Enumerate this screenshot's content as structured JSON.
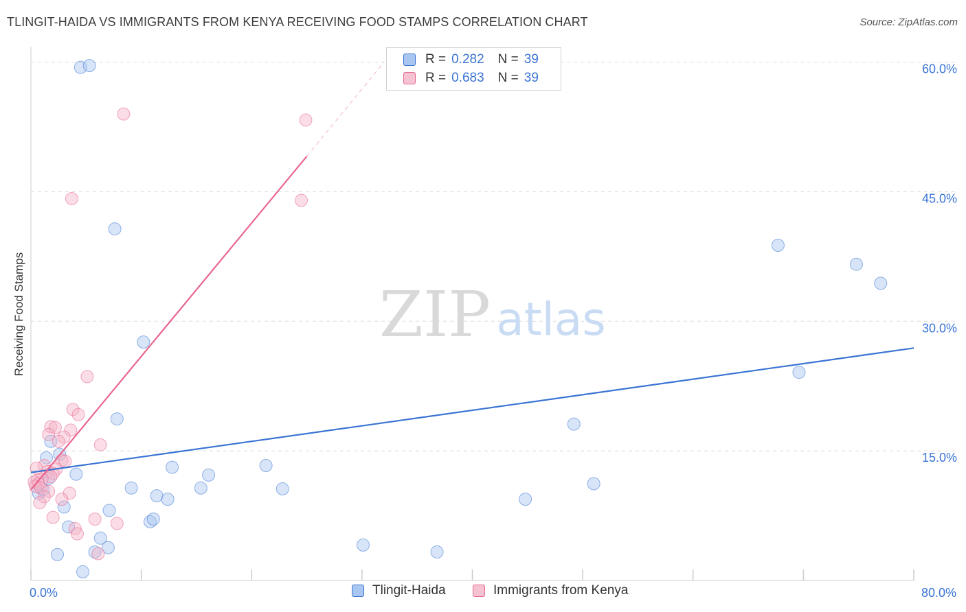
{
  "title": "TLINGIT-HAIDA VS IMMIGRANTS FROM KENYA RECEIVING FOOD STAMPS CORRELATION CHART",
  "source": "Source: ZipAtlas.com",
  "watermark": {
    "zip": "ZIP",
    "atlas": "atlas"
  },
  "colors": {
    "blue": "#3a74d4",
    "blue_fill": "#a8c6f0",
    "pink": "#e8658e",
    "pink_fill": "#f5b3c8",
    "grid": "#dddddd",
    "tick_label": "#3a74d4"
  },
  "legend": {
    "rows": [
      {
        "r_label": "R =",
        "r_value": "0.282",
        "n_label": "N =",
        "n_value": "39"
      },
      {
        "r_label": "R =",
        "r_value": "0.683",
        "n_label": "N =",
        "n_value": "39"
      }
    ]
  },
  "bottom_legend": [
    "Tlingit-Haida",
    "Immigrants from Kenya"
  ],
  "chart_data": {
    "type": "scatter",
    "ylabel": "Receiving Food Stamps",
    "xlabel": "",
    "xlim": [
      0,
      80
    ],
    "ylim": [
      0,
      61
    ],
    "x_tick_labels": [
      {
        "value": 0,
        "label": "0.0%"
      },
      {
        "value": 80,
        "label": "80.0%"
      }
    ],
    "y_tick_labels": [
      {
        "value": 15,
        "label": "15.0%"
      },
      {
        "value": 30,
        "label": "30.0%"
      },
      {
        "value": 45,
        "label": "45.0%"
      },
      {
        "value": 60,
        "label": "60.0%"
      }
    ],
    "grid": true,
    "legend_position": "top-center",
    "series": [
      {
        "name": "Tlingit-Haida",
        "color": "#3a74d4",
        "points": [
          [
            4.5,
            59.4
          ],
          [
            5.3,
            59.6
          ],
          [
            7.6,
            40.7
          ],
          [
            10.2,
            27.6
          ],
          [
            7.8,
            18.7
          ],
          [
            1.4,
            14.2
          ],
          [
            2.6,
            14.6
          ],
          [
            1.8,
            16.1
          ],
          [
            4.1,
            12.3
          ],
          [
            0.7,
            10.1
          ],
          [
            1.1,
            10.5
          ],
          [
            3.0,
            8.5
          ],
          [
            3.4,
            6.2
          ],
          [
            2.4,
            3.0
          ],
          [
            4.7,
            1.0
          ],
          [
            5.8,
            3.3
          ],
          [
            6.3,
            4.9
          ],
          [
            7.1,
            8.1
          ],
          [
            7.0,
            3.8
          ],
          [
            9.1,
            10.7
          ],
          [
            10.8,
            6.8
          ],
          [
            11.1,
            7.1
          ],
          [
            11.4,
            9.8
          ],
          [
            12.4,
            9.4
          ],
          [
            12.8,
            13.1
          ],
          [
            15.4,
            10.7
          ],
          [
            16.1,
            12.2
          ],
          [
            21.3,
            13.3
          ],
          [
            22.8,
            10.6
          ],
          [
            30.1,
            4.1
          ],
          [
            36.8,
            3.3
          ],
          [
            44.8,
            9.4
          ],
          [
            49.2,
            18.1
          ],
          [
            51.0,
            11.2
          ],
          [
            67.7,
            38.8
          ],
          [
            69.6,
            24.1
          ],
          [
            74.8,
            36.6
          ],
          [
            77.0,
            34.4
          ],
          [
            1.6,
            11.8
          ]
        ]
      },
      {
        "name": "Immigrants from Kenya",
        "color": "#e8658e",
        "points": [
          [
            8.4,
            54.0
          ],
          [
            24.9,
            53.3
          ],
          [
            3.7,
            44.2
          ],
          [
            24.5,
            44.0
          ],
          [
            5.1,
            23.6
          ],
          [
            3.8,
            19.8
          ],
          [
            4.3,
            19.2
          ],
          [
            1.8,
            17.8
          ],
          [
            2.2,
            17.7
          ],
          [
            3.6,
            17.4
          ],
          [
            1.6,
            16.9
          ],
          [
            3.0,
            16.6
          ],
          [
            2.5,
            16.1
          ],
          [
            6.3,
            15.7
          ],
          [
            2.8,
            13.9
          ],
          [
            3.1,
            13.8
          ],
          [
            1.2,
            13.3
          ],
          [
            0.5,
            13.0
          ],
          [
            2.3,
            12.9
          ],
          [
            1.5,
            12.6
          ],
          [
            2.0,
            12.4
          ],
          [
            1.8,
            12.0
          ],
          [
            1.0,
            11.7
          ],
          [
            0.6,
            11.6
          ],
          [
            0.3,
            11.4
          ],
          [
            0.7,
            11.2
          ],
          [
            0.4,
            10.9
          ],
          [
            0.9,
            10.7
          ],
          [
            1.6,
            10.3
          ],
          [
            3.5,
            10.1
          ],
          [
            1.2,
            9.7
          ],
          [
            2.8,
            9.4
          ],
          [
            0.8,
            9.0
          ],
          [
            2.0,
            7.3
          ],
          [
            4.0,
            6.0
          ],
          [
            5.8,
            7.1
          ],
          [
            7.8,
            6.6
          ],
          [
            4.2,
            5.4
          ],
          [
            6.1,
            3.1
          ]
        ]
      }
    ],
    "trend_lines": [
      {
        "series": "Tlingit-Haida",
        "from": [
          0,
          12.5
        ],
        "to": [
          80,
          26.9
        ],
        "style": "solid"
      },
      {
        "series": "Immigrants from Kenya",
        "from": [
          0,
          10.5
        ],
        "to": [
          25.0,
          49.1
        ],
        "style": "solid"
      },
      {
        "series": "Immigrants from Kenya",
        "from": [
          25.0,
          49.1
        ],
        "to": [
          32.0,
          60.0
        ],
        "style": "dashed"
      }
    ]
  }
}
